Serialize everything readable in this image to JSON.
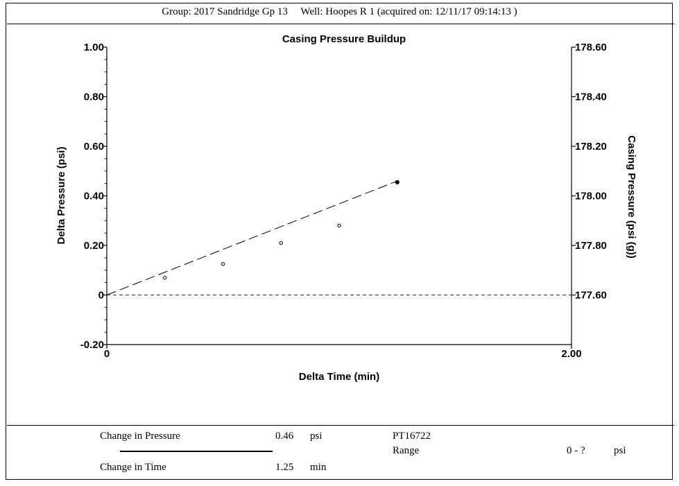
{
  "header": {
    "text": "Group: 2017 Sandridge Gp 13     Well: Hoopes R 1 (acquired on: 12/11/17 09:14:13 )"
  },
  "chart_data": {
    "type": "scatter",
    "title": "Casing Pressure Buildup",
    "xlabel": "Delta Time (min)",
    "ylabel": "Delta Pressure (psi)",
    "y2label": "Casing Pressure (psi (g))",
    "xlim": [
      0,
      2.0
    ],
    "ylim": [
      -0.2,
      1.0
    ],
    "y2lim": [
      177.6,
      178.6
    ],
    "x_tick_labels": [
      "0",
      "2.00"
    ],
    "y_tick_labels": [
      "1.00",
      "0.80",
      "0.60",
      "0.40",
      "0.20",
      "0",
      "-0.20"
    ],
    "y_tick_values": [
      1.0,
      0.8,
      0.6,
      0.4,
      0.2,
      0.0,
      -0.2
    ],
    "y2_tick_labels": [
      "178.60",
      "178.40",
      "178.20",
      "178.00",
      "177.80",
      "177.60"
    ],
    "y2_tick_values": [
      178.6,
      178.4,
      178.2,
      178.0,
      177.8,
      177.6
    ],
    "points": [
      {
        "x": 0.25,
        "y": 0.07
      },
      {
        "x": 0.5,
        "y": 0.125
      },
      {
        "x": 0.75,
        "y": 0.21
      },
      {
        "x": 1.0,
        "y": 0.28
      },
      {
        "x": 1.25,
        "y": 0.455
      }
    ],
    "trend_line": {
      "x": [
        0,
        1.25
      ],
      "y": [
        0,
        0.46
      ]
    },
    "baseline_y": 0
  },
  "footer": {
    "change_pressure_label": "Change in Pressure",
    "change_pressure_value": "0.46",
    "change_pressure_unit": "psi",
    "change_time_label": "Change in Time",
    "change_time_value": "1.25",
    "change_time_unit": "min",
    "sensor_id": "PT16722",
    "range_label": "Range",
    "range_value": "0 - ?",
    "range_unit": "psi"
  }
}
